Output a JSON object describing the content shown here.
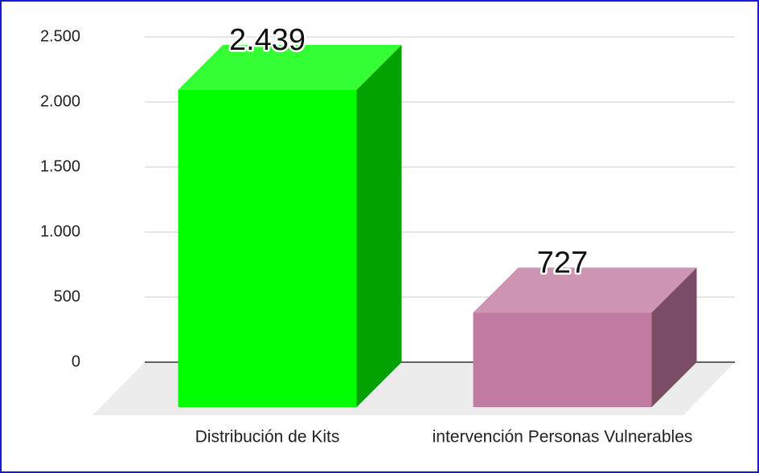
{
  "chart_data": {
    "type": "bar3d",
    "categories": [
      "Distribución de Kits",
      "intervención Personas Vulnerables"
    ],
    "values": [
      2439,
      727
    ],
    "value_labels": [
      "2.439",
      "727"
    ],
    "colors": [
      "#00ff00",
      "#c27ba0"
    ],
    "ylim": [
      0,
      2500
    ],
    "yticks": [
      0,
      500,
      {
        "value": 1000,
        "label": "1.000"
      },
      {
        "value": 1500,
        "label": "1.500"
      },
      {
        "value": 2000,
        "label": "2.000"
      },
      {
        "value": 2500,
        "label": "2.500"
      }
    ],
    "grid": true
  }
}
